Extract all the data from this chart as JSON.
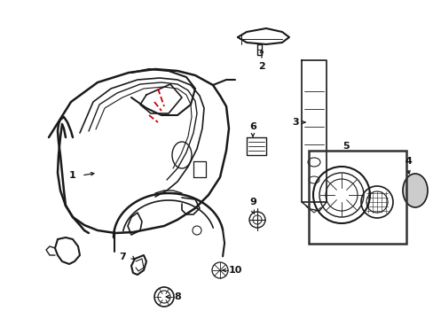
{
  "background_color": "#ffffff",
  "line_color": "#1a1a1a",
  "red_color": "#cc0000",
  "label_color": "#111111",
  "figsize": [
    4.89,
    3.6
  ],
  "dpi": 100
}
